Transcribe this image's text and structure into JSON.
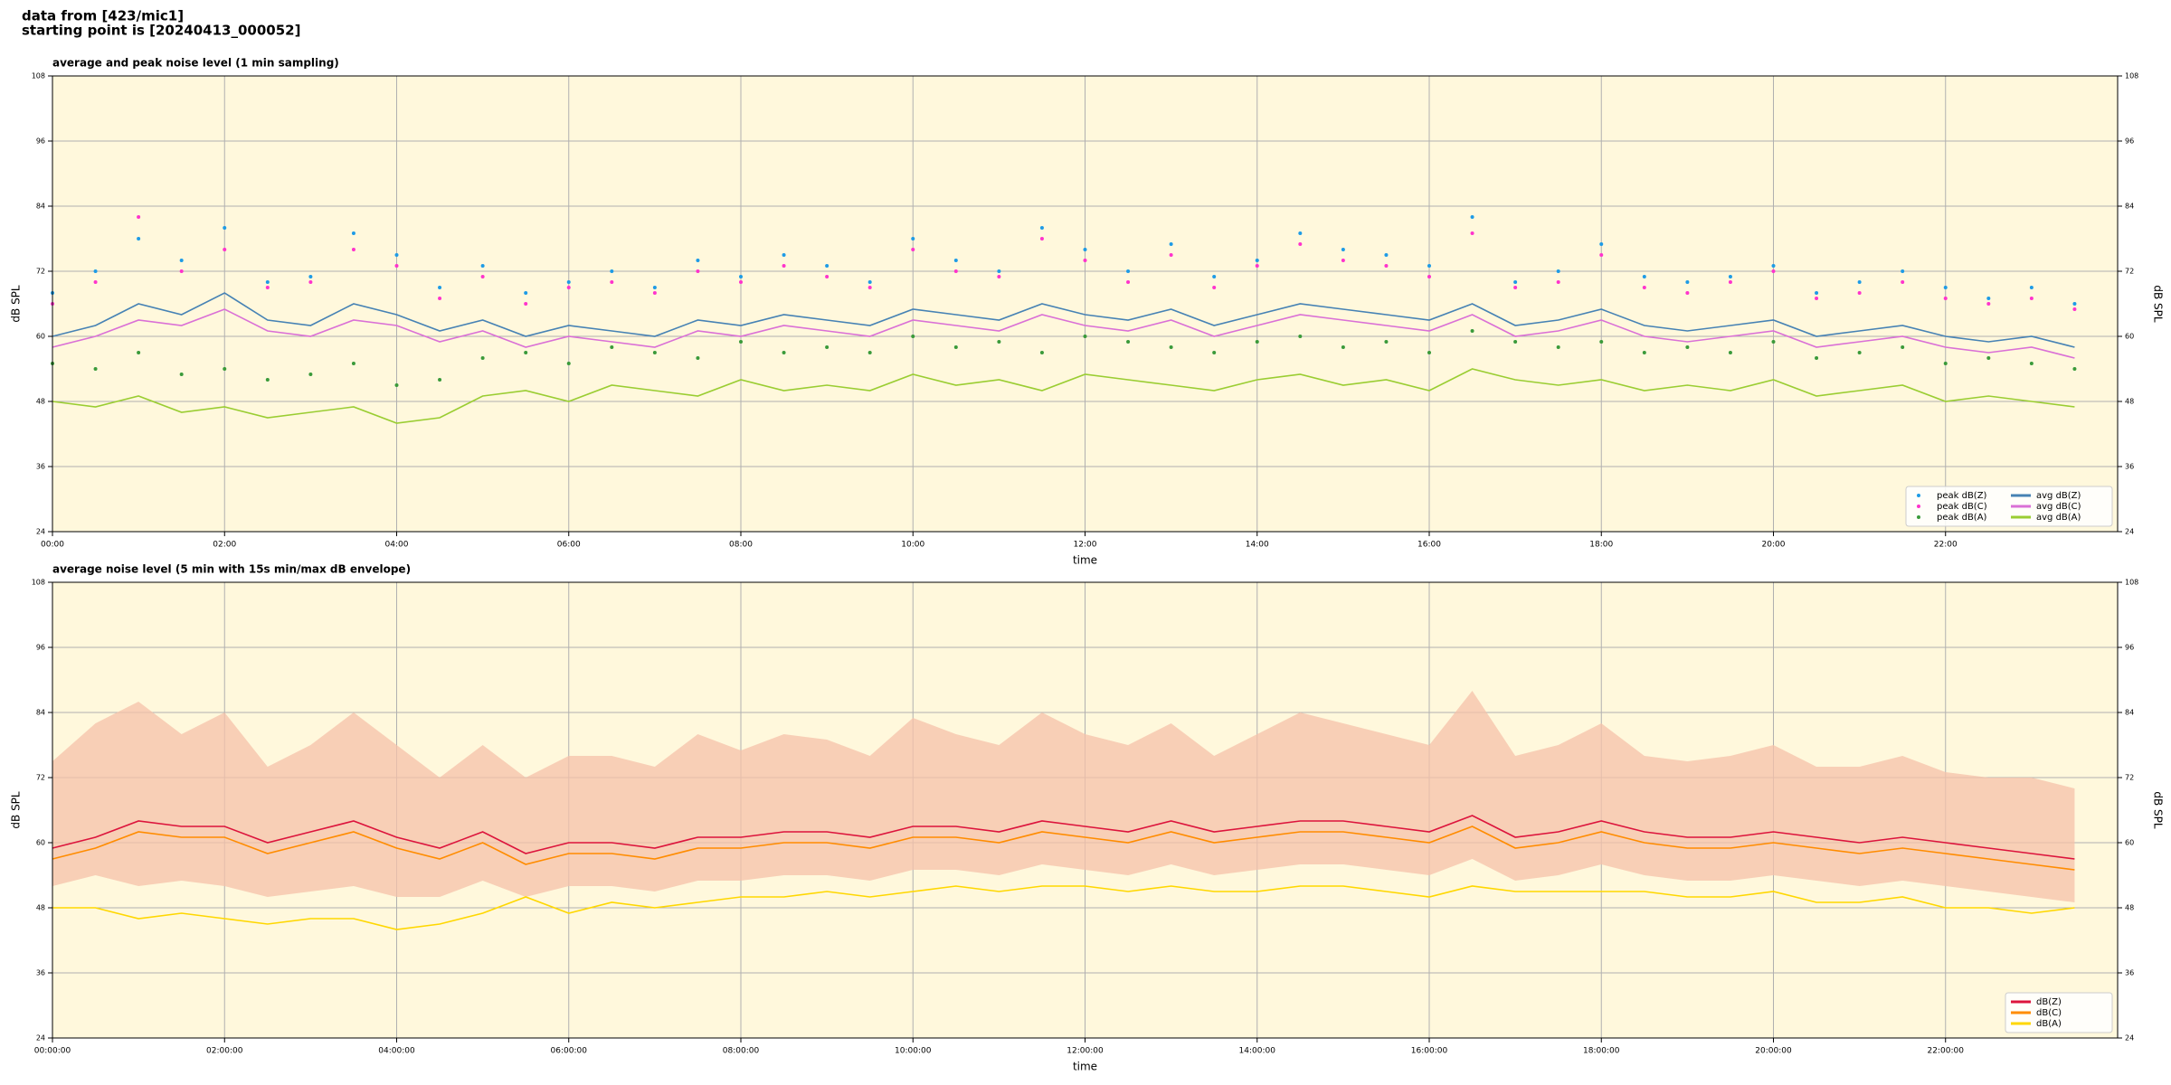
{
  "header": {
    "line1": "data from [423/mic1]",
    "line2": "starting point is [20240413_000052]"
  },
  "chart_data": [
    {
      "type": "line",
      "title": "average and peak noise level (1 min sampling)",
      "xlabel": "time",
      "ylabel": "dB SPL",
      "xlim": [
        0,
        24
      ],
      "ylim": [
        24,
        108
      ],
      "yticks": [
        24,
        36,
        48,
        60,
        72,
        84,
        96,
        108
      ],
      "xticks": [
        {
          "value": 0,
          "label": "00:00"
        },
        {
          "value": 2,
          "label": "02:00"
        },
        {
          "value": 4,
          "label": "04:00"
        },
        {
          "value": 6,
          "label": "06:00"
        },
        {
          "value": 8,
          "label": "08:00"
        },
        {
          "value": 10,
          "label": "10:00"
        },
        {
          "value": 12,
          "label": "12:00"
        },
        {
          "value": 14,
          "label": "14:00"
        },
        {
          "value": 16,
          "label": "16:00"
        },
        {
          "value": 18,
          "label": "18:00"
        },
        {
          "value": 20,
          "label": "20:00"
        },
        {
          "value": 22,
          "label": "22:00"
        }
      ],
      "grid": true,
      "legend": "lower right",
      "background": "#fff8dc",
      "x": [
        0,
        0.5,
        1,
        1.5,
        2,
        2.5,
        3,
        3.5,
        4,
        4.5,
        5,
        5.5,
        6,
        6.5,
        7,
        7.5,
        8,
        8.5,
        9,
        9.5,
        10,
        10.5,
        11,
        11.5,
        12,
        12.5,
        13,
        13.5,
        14,
        14.5,
        15,
        15.5,
        16,
        16.5,
        17,
        17.5,
        18,
        18.5,
        19,
        19.5,
        20,
        20.5,
        21,
        21.5,
        22,
        22.5,
        23,
        23.5
      ],
      "series": [
        {
          "name": "peak dB(Z)",
          "type": "scatter",
          "color": "#1e9be6",
          "values": [
            68,
            72,
            78,
            74,
            80,
            70,
            71,
            79,
            75,
            69,
            73,
            68,
            70,
            72,
            69,
            74,
            71,
            75,
            73,
            70,
            78,
            74,
            72,
            80,
            76,
            72,
            77,
            71,
            74,
            79,
            76,
            75,
            73,
            82,
            70,
            72,
            77,
            71,
            70,
            71,
            73,
            68,
            70,
            72,
            69,
            67,
            69,
            66
          ]
        },
        {
          "name": "peak dB(C)",
          "type": "scatter",
          "color": "#ff33cc",
          "values": [
            66,
            70,
            82,
            72,
            76,
            69,
            70,
            76,
            73,
            67,
            71,
            66,
            69,
            70,
            68,
            72,
            70,
            73,
            71,
            69,
            76,
            72,
            71,
            78,
            74,
            70,
            75,
            69,
            73,
            77,
            74,
            73,
            71,
            79,
            69,
            70,
            75,
            69,
            68,
            70,
            72,
            67,
            68,
            70,
            67,
            66,
            67,
            65
          ]
        },
        {
          "name": "peak dB(A)",
          "type": "scatter",
          "color": "#3a9a3a",
          "values": [
            55,
            54,
            57,
            53,
            54,
            52,
            53,
            55,
            51,
            52,
            56,
            57,
            55,
            58,
            57,
            56,
            59,
            57,
            58,
            57,
            60,
            58,
            59,
            57,
            60,
            59,
            58,
            57,
            59,
            60,
            58,
            59,
            57,
            61,
            59,
            58,
            59,
            57,
            58,
            57,
            59,
            56,
            57,
            58,
            55,
            56,
            55,
            54
          ]
        },
        {
          "name": "avg dB(Z)",
          "type": "line",
          "color": "#4682b4",
          "values": [
            60,
            62,
            66,
            64,
            68,
            63,
            62,
            66,
            64,
            61,
            63,
            60,
            62,
            61,
            60,
            63,
            62,
            64,
            63,
            62,
            65,
            64,
            63,
            66,
            64,
            63,
            65,
            62,
            64,
            66,
            65,
            64,
            63,
            66,
            62,
            63,
            65,
            62,
            61,
            62,
            63,
            60,
            61,
            62,
            60,
            59,
            60,
            58
          ]
        },
        {
          "name": "avg dB(C)",
          "type": "line",
          "color": "#da70d6",
          "values": [
            58,
            60,
            63,
            62,
            65,
            61,
            60,
            63,
            62,
            59,
            61,
            58,
            60,
            59,
            58,
            61,
            60,
            62,
            61,
            60,
            63,
            62,
            61,
            64,
            62,
            61,
            63,
            60,
            62,
            64,
            63,
            62,
            61,
            64,
            60,
            61,
            63,
            60,
            59,
            60,
            61,
            58,
            59,
            60,
            58,
            57,
            58,
            56
          ]
        },
        {
          "name": "avg dB(A)",
          "type": "line",
          "color": "#9acd32",
          "values": [
            48,
            47,
            49,
            46,
            47,
            45,
            46,
            47,
            44,
            45,
            49,
            50,
            48,
            51,
            50,
            49,
            52,
            50,
            51,
            50,
            53,
            51,
            52,
            50,
            53,
            52,
            51,
            50,
            52,
            53,
            51,
            52,
            50,
            54,
            52,
            51,
            52,
            50,
            51,
            50,
            52,
            49,
            50,
            51,
            48,
            49,
            48,
            47
          ]
        }
      ]
    },
    {
      "type": "line",
      "title": "average noise level (5 min with 15s min/max dB envelope)",
      "xlabel": "time",
      "ylabel": "dB SPL",
      "xlim": [
        0,
        24
      ],
      "ylim": [
        24,
        108
      ],
      "yticks": [
        24,
        36,
        48,
        60,
        72,
        84,
        96,
        108
      ],
      "xticks": [
        {
          "value": 0,
          "label": "00:00:00"
        },
        {
          "value": 2,
          "label": "02:00:00"
        },
        {
          "value": 4,
          "label": "04:00:00"
        },
        {
          "value": 6,
          "label": "06:00:00"
        },
        {
          "value": 8,
          "label": "08:00:00"
        },
        {
          "value": 10,
          "label": "10:00:00"
        },
        {
          "value": 12,
          "label": "12:00:00"
        },
        {
          "value": 14,
          "label": "14:00:00"
        },
        {
          "value": 16,
          "label": "16:00:00"
        },
        {
          "value": 18,
          "label": "18:00:00"
        },
        {
          "value": 20,
          "label": "20:00:00"
        },
        {
          "value": 22,
          "label": "22:00:00"
        }
      ],
      "grid": true,
      "legend": "lower right",
      "background": "#fff8dc",
      "x": [
        0,
        0.5,
        1,
        1.5,
        2,
        2.5,
        3,
        3.5,
        4,
        4.5,
        5,
        5.5,
        6,
        6.5,
        7,
        7.5,
        8,
        8.5,
        9,
        9.5,
        10,
        10.5,
        11,
        11.5,
        12,
        12.5,
        13,
        13.5,
        14,
        14.5,
        15,
        15.5,
        16,
        16.5,
        17,
        17.5,
        18,
        18.5,
        19,
        19.5,
        20,
        20.5,
        21,
        21.5,
        22,
        22.5,
        23,
        23.5
      ],
      "envelope": {
        "color": "#f5c2aa",
        "low": [
          52,
          54,
          52,
          53,
          52,
          50,
          51,
          52,
          50,
          50,
          53,
          50,
          52,
          52,
          51,
          53,
          53,
          54,
          54,
          53,
          55,
          55,
          54,
          56,
          55,
          54,
          56,
          54,
          55,
          56,
          56,
          55,
          54,
          57,
          53,
          54,
          56,
          54,
          53,
          53,
          54,
          53,
          52,
          53,
          52,
          51,
          50,
          49
        ],
        "high": [
          75,
          82,
          86,
          80,
          84,
          74,
          78,
          84,
          78,
          72,
          78,
          72,
          76,
          76,
          74,
          80,
          77,
          80,
          79,
          76,
          83,
          80,
          78,
          84,
          80,
          78,
          82,
          76,
          80,
          84,
          82,
          80,
          78,
          88,
          76,
          78,
          82,
          76,
          75,
          76,
          78,
          74,
          74,
          76,
          73,
          72,
          72,
          70
        ]
      },
      "series": [
        {
          "name": "dB(Z)",
          "type": "line",
          "color": "#dc143c",
          "values": [
            59,
            61,
            64,
            63,
            63,
            60,
            62,
            64,
            61,
            59,
            62,
            58,
            60,
            60,
            59,
            61,
            61,
            62,
            62,
            61,
            63,
            63,
            62,
            64,
            63,
            62,
            64,
            62,
            63,
            64,
            64,
            63,
            62,
            65,
            61,
            62,
            64,
            62,
            61,
            61,
            62,
            61,
            60,
            61,
            60,
            59,
            58,
            57
          ]
        },
        {
          "name": "dB(C)",
          "type": "line",
          "color": "#ff8c00",
          "values": [
            57,
            59,
            62,
            61,
            61,
            58,
            60,
            62,
            59,
            57,
            60,
            56,
            58,
            58,
            57,
            59,
            59,
            60,
            60,
            59,
            61,
            61,
            60,
            62,
            61,
            60,
            62,
            60,
            61,
            62,
            62,
            61,
            60,
            63,
            59,
            60,
            62,
            60,
            59,
            59,
            60,
            59,
            58,
            59,
            58,
            57,
            56,
            55
          ]
        },
        {
          "name": "dB(A)",
          "type": "line",
          "color": "#ffd700",
          "values": [
            48,
            48,
            46,
            47,
            46,
            45,
            46,
            46,
            44,
            45,
            47,
            50,
            47,
            49,
            48,
            49,
            50,
            50,
            51,
            50,
            51,
            52,
            51,
            52,
            52,
            51,
            52,
            51,
            51,
            52,
            52,
            51,
            50,
            52,
            51,
            51,
            51,
            51,
            50,
            50,
            51,
            49,
            49,
            50,
            48,
            48,
            47,
            48
          ]
        }
      ]
    }
  ]
}
